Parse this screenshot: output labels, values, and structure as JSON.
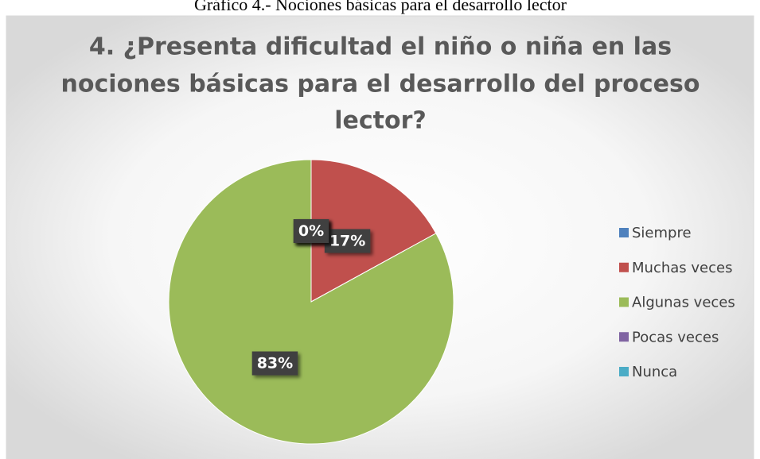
{
  "chart_data": {
    "type": "pie",
    "caption": "Gráfico 4.- Nociones básicas para el desarrollo lector",
    "title": [
      "4. ¿Presenta dificultad el niño o niña en las",
      "nociones básicas para el desarrollo del proceso",
      "lector?"
    ],
    "categories": [
      "Siempre",
      "Muchas veces",
      "Algunas veces",
      "Pocas veces",
      "Nunca"
    ],
    "values": [
      0,
      17,
      83,
      0,
      0
    ],
    "value_labels": [
      "0%",
      "17%",
      "83%",
      "0%",
      "0%"
    ],
    "colors": [
      "#4f81bd",
      "#c0504d",
      "#9bbb59",
      "#8064a2",
      "#4bacc6"
    ],
    "legend": "right"
  }
}
